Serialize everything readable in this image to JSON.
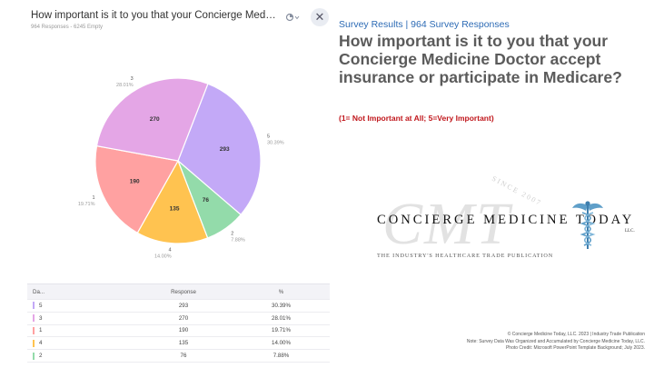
{
  "panel": {
    "title": "How important is it to you that your Concierge Medicine Doct...",
    "subtitle": "964 Responses - 6245 Empty",
    "menu_icon": "chart-type-icon",
    "close_label": "✕"
  },
  "chart_data": {
    "type": "pie",
    "slices": [
      {
        "label": "5",
        "count": 293,
        "percent": "30.39%",
        "color": "#c3a9f7"
      },
      {
        "label": "2",
        "count": 76,
        "percent": "7.88%",
        "color": "#93dbaa"
      },
      {
        "label": "4",
        "count": 135,
        "percent": "14.00%",
        "color": "#ffc350"
      },
      {
        "label": "1",
        "count": 190,
        "percent": "19.71%",
        "color": "#ffa1a1"
      },
      {
        "label": "3",
        "count": 270,
        "percent": "28.01%",
        "color": "#e4a6e6"
      }
    ]
  },
  "table": {
    "headers": [
      "Da...",
      "Response",
      "%"
    ],
    "rows": [
      {
        "label": "5",
        "response": "293",
        "percent": "30.39%",
        "color": "#c3a9f7"
      },
      {
        "label": "3",
        "response": "270",
        "percent": "28.01%",
        "color": "#e4a6e6"
      },
      {
        "label": "1",
        "response": "190",
        "percent": "19.71%",
        "color": "#ffa1a1"
      },
      {
        "label": "4",
        "response": "135",
        "percent": "14.00%",
        "color": "#ffc350"
      },
      {
        "label": "2",
        "response": "76",
        "percent": "7.88%",
        "color": "#93dbaa"
      }
    ]
  },
  "right": {
    "kicker": "Survey Results | 964 Survey Responses",
    "headline": "How important is it to you that your Concierge Medicine Doctor accept insurance or participate in Medicare?",
    "scale_note": "(1= Not Important at All; 5=Very Important)"
  },
  "brand": {
    "monogram": "CMT",
    "since": "SINCE 2007",
    "name": "CONCIERGE MEDICINE TODAY",
    "llc": "LLC.",
    "tagline": "THE INDUSTRY'S HEALTHCARE TRADE PUBLICATION"
  },
  "footer": {
    "line1": "© Concierge Medicine Today, LLC.  2023 | Industry Trade Publication",
    "line2": "Note: Survey Data Was Organized and Accumulated by Concierge Medicine Today, LLC.",
    "line3": "Photo Credit: Microsoft PowerPoint Template Background; July 2023."
  }
}
